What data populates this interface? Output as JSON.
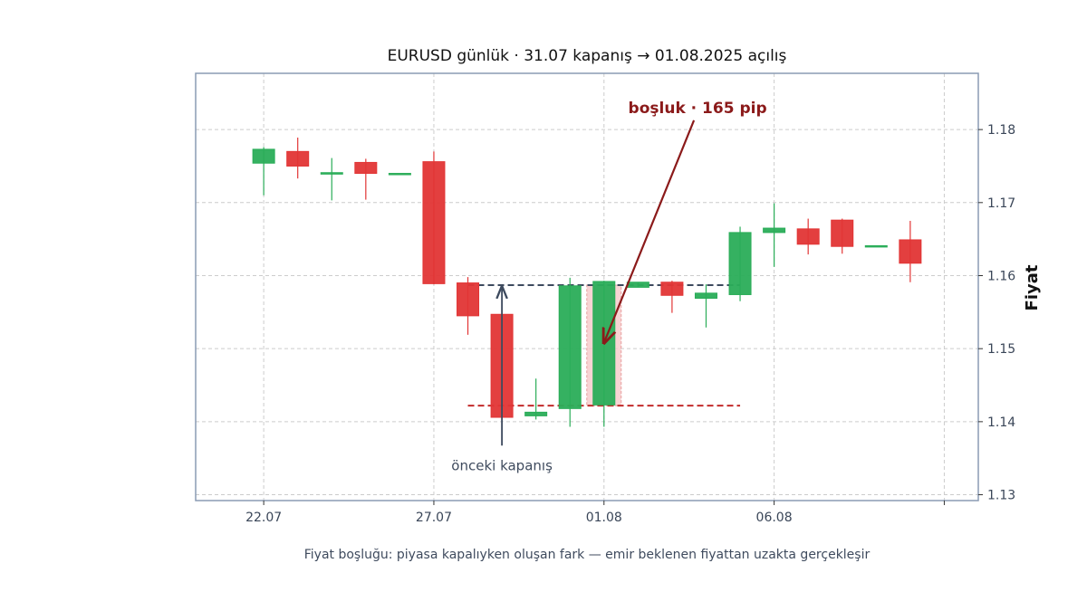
{
  "chart_data": {
    "type": "candlestick",
    "title": "EURUSD günlük · 31.07 kapanış → 01.08.2025 açılış",
    "ylabel": "Fiyat",
    "caption": "Fiyat boşluğu: piyasa kapalıyken oluşan fark — emir beklenen fiyattan uzakta gerçekleşir",
    "x_ticks": [
      {
        "label": "22.07",
        "day": 0
      },
      {
        "label": "27.07",
        "day": 5
      },
      {
        "label": "01.08",
        "day": 10
      },
      {
        "label": "06.08",
        "day": 15
      },
      {
        "label": "",
        "day": 20
      }
    ],
    "y_ticks": [
      1.13,
      1.14,
      1.15,
      1.16,
      1.17,
      1.18
    ],
    "xlim": [
      -2,
      21
    ],
    "ylim": [
      1.1292,
      1.1877
    ],
    "grid": true,
    "candles": [
      {
        "day": 0,
        "open": 1.1754,
        "high": 1.1776,
        "low": 1.171,
        "close": 1.1773
      },
      {
        "day": 1,
        "open": 1.177,
        "high": 1.1789,
        "low": 1.1733,
        "close": 1.175
      },
      {
        "day": 2,
        "open": 1.1739,
        "high": 1.1761,
        "low": 1.1703,
        "close": 1.1741
      },
      {
        "day": 3,
        "open": 1.1755,
        "high": 1.176,
        "low": 1.1704,
        "close": 1.174
      },
      {
        "day": 4,
        "open": 1.174,
        "high": 1.174,
        "low": 1.174,
        "close": 1.174
      },
      {
        "day": 5,
        "open": 1.1756,
        "high": 1.177,
        "low": 1.1588,
        "close": 1.1589
      },
      {
        "day": 6,
        "open": 1.159,
        "high": 1.1598,
        "low": 1.1519,
        "close": 1.1545
      },
      {
        "day": 7,
        "open": 1.1547,
        "high": 1.1547,
        "low": 1.1406,
        "close": 1.1406
      },
      {
        "day": 8,
        "open": 1.1408,
        "high": 1.1459,
        "low": 1.1403,
        "close": 1.1413
      },
      {
        "day": 9,
        "open": 1.1418,
        "high": 1.1597,
        "low": 1.1393,
        "close": 1.1586
      },
      {
        "day": 10,
        "open": 1.1423,
        "high": 1.1593,
        "low": 1.1393,
        "close": 1.1592
      },
      {
        "day": 11,
        "open": 1.1584,
        "high": 1.1591,
        "low": 1.1584,
        "close": 1.1591
      },
      {
        "day": 12,
        "open": 1.1591,
        "high": 1.1593,
        "low": 1.1549,
        "close": 1.1573
      },
      {
        "day": 13,
        "open": 1.1569,
        "high": 1.1588,
        "low": 1.1529,
        "close": 1.1576
      },
      {
        "day": 14,
        "open": 1.1574,
        "high": 1.1667,
        "low": 1.1565,
        "close": 1.1659
      },
      {
        "day": 15,
        "open": 1.1659,
        "high": 1.1699,
        "low": 1.1612,
        "close": 1.1665
      },
      {
        "day": 16,
        "open": 1.1664,
        "high": 1.1678,
        "low": 1.1629,
        "close": 1.1643
      },
      {
        "day": 17,
        "open": 1.1676,
        "high": 1.1678,
        "low": 1.163,
        "close": 1.164
      },
      {
        "day": 18,
        "open": 1.1641,
        "high": 1.1641,
        "low": 1.1641,
        "close": 1.1641
      },
      {
        "day": 19,
        "open": 1.1649,
        "high": 1.1675,
        "low": 1.1591,
        "close": 1.1617
      }
    ],
    "gap": {
      "prev_close": 1.1587,
      "next_open": 1.1422,
      "from_day": 6,
      "to_day": 14,
      "zone_day": 10
    },
    "annotations": [
      {
        "id": "gap-label",
        "text": "boşluk · 165 pip",
        "day": 12.75,
        "y": 1.183,
        "arrow_to_day": 10,
        "arrow_to_y": 1.1508
      },
      {
        "id": "prev-close-label",
        "text": "önceki kapanış",
        "day": 7,
        "y": 1.134,
        "arrow_to_day": 7,
        "arrow_to_y": 1.1587
      }
    ],
    "colors": {
      "up": "#2aad58",
      "down": "#e23535",
      "prev_close_line": "#3d4a5e",
      "next_open_line": "#c22b2b",
      "gap_zone": "#f6c9c9",
      "gap_arrow": "#8b1a1a",
      "prev_arrow": "#3d4a5e",
      "frame": "#8a9bb4",
      "grid": "#cccccc"
    }
  }
}
